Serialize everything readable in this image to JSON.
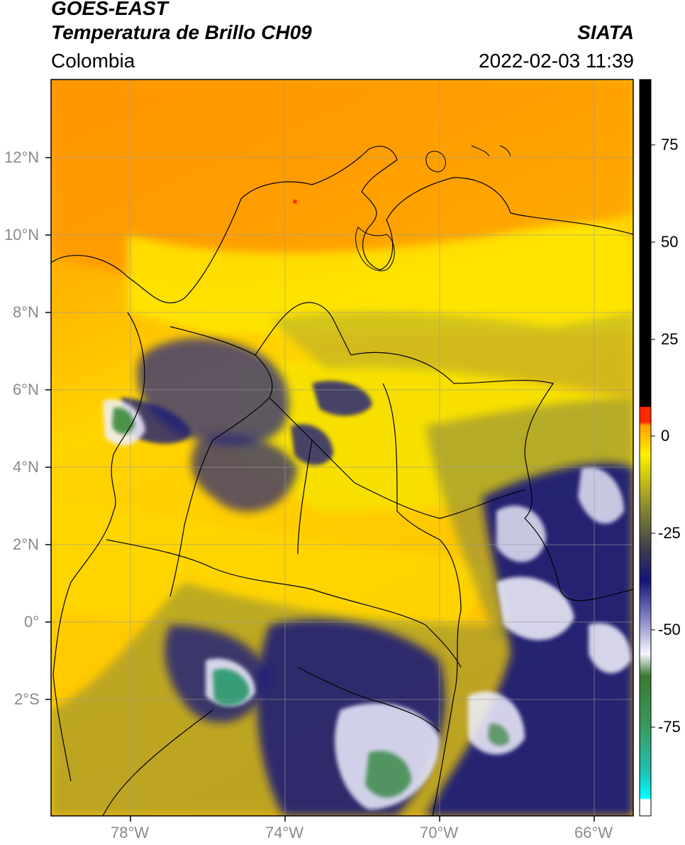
{
  "header": {
    "satellite": "GOES-EAST",
    "product": "Temperatura de Brillo CH09",
    "institution": "SIATA",
    "region": "Colombia",
    "datetime": "2022-02-03 11:39"
  },
  "map": {
    "lon_range": [
      -80,
      -65
    ],
    "lat_range": [
      -5,
      14
    ],
    "lon_ticks": [
      "78°W",
      "74°W",
      "70°W",
      "66°W"
    ],
    "lat_ticks": [
      "12°N",
      "10°N",
      "8°N",
      "6°N",
      "4°N",
      "2°N",
      "0°",
      "2°S"
    ]
  },
  "colorbar": {
    "ticks": [
      "75",
      "50",
      "25",
      "0",
      "-25",
      "-50",
      "-75"
    ],
    "range": [
      -95,
      90
    ],
    "colors": {
      "black": "#000000",
      "red": "#ff2a00",
      "orange": "#ff9a00",
      "yellow": "#fff000",
      "olive": "#7a7a30",
      "navy": "#1a1a78",
      "white": "#f4f4ff",
      "green": "#3a8a3a",
      "teal": "#2ab5a0",
      "cyan": "#00ffff"
    }
  }
}
